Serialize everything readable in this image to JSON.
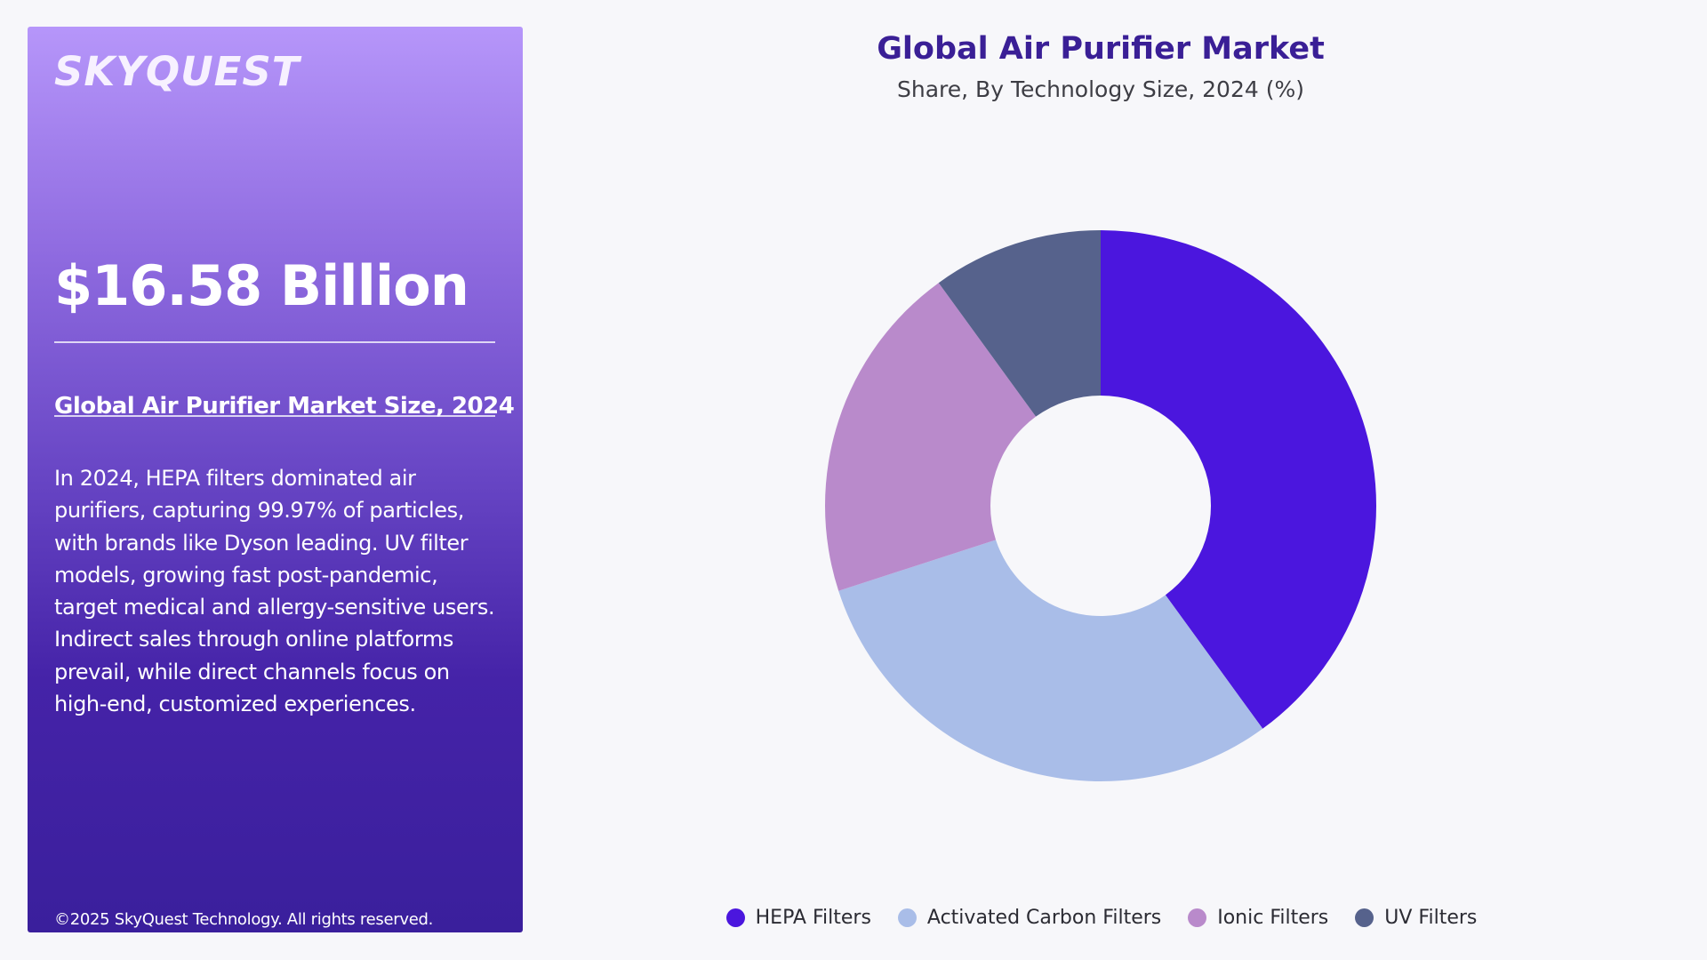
{
  "panel": {
    "logo": "SKYQUEST",
    "market_size": "$16.58 Billion",
    "market_size_label": "Global Air Purifier Market Size, 2024",
    "description": "In 2024, HEPA filters dominated air purifiers, capturing 99.97% of particles, with brands like Dyson leading. UV filter models, growing fast post-pandemic, target medical and allergy-sensitive users. Indirect sales through online platforms prevail, while direct channels focus on high-end, customized experiences.",
    "copyright": "©2025 SkyQuest Technology. All rights reserved."
  },
  "chart_data": {
    "type": "pie",
    "style": "donut",
    "title": "Global Air Purifier Market",
    "subtitle": "Share, By Technology Size, 2024 (%)",
    "categories": [
      "HEPA Filters",
      "Activated Carbon Filters",
      "Ionic Filters",
      "UV Filters"
    ],
    "values": [
      40,
      30,
      20,
      10
    ],
    "colors": [
      "#4b16de",
      "#a9bde8",
      "#b98acb",
      "#56628c"
    ],
    "legend_position": "bottom"
  }
}
